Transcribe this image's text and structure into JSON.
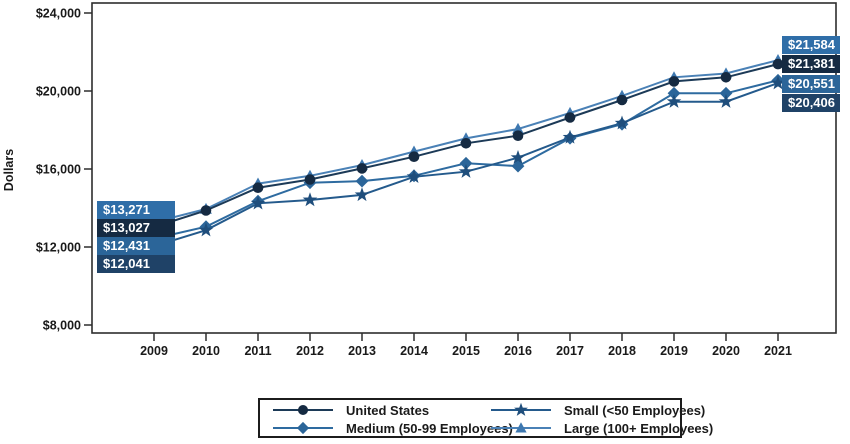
{
  "chart_data": {
    "type": "line",
    "title": "",
    "xlabel": "",
    "ylabel": "Dollars",
    "grid": false,
    "legend_position": "bottom",
    "x": [
      2009,
      2010,
      2011,
      2012,
      2013,
      2014,
      2015,
      2016,
      2017,
      2018,
      2019,
      2020,
      2021
    ],
    "ylim": [
      8000,
      24000
    ],
    "yticks": [
      8000,
      12000,
      16000,
      20000,
      24000
    ],
    "ytick_labels": [
      "$8,000",
      "$12,000",
      "$16,000",
      "$20,000",
      "$24,000"
    ],
    "series": [
      {
        "id": "united-states",
        "name": "United States",
        "marker": "circle",
        "color": "#152a42",
        "line_color": "#1c3a57",
        "label_bg": "#152a42",
        "values": [
          13027,
          13870,
          15040,
          15460,
          16030,
          16630,
          17320,
          17710,
          18640,
          19540,
          20490,
          20700,
          21381
        ],
        "start_label": "$13,027",
        "end_label": "$21,381"
      },
      {
        "id": "medium-50-99",
        "name": "Medium (50-99 Employees)",
        "marker": "diamond",
        "color": "#2b6599",
        "line_color": "#2e6ba0",
        "label_bg": "#2b6599",
        "values": [
          12431,
          13040,
          14350,
          15300,
          15380,
          15650,
          16290,
          16150,
          17580,
          18300,
          19880,
          19880,
          20551
        ],
        "start_label": "$12,431",
        "end_label": "$20,551"
      },
      {
        "id": "small-under-50",
        "name": "Small (<50 Employees)",
        "marker": "star",
        "color": "#1f4e7c",
        "line_color": "#245a8c",
        "label_bg": "#1f4267",
        "values": [
          12041,
          12860,
          14240,
          14410,
          14670,
          15600,
          15860,
          16580,
          17620,
          18350,
          19450,
          19450,
          20406
        ],
        "start_label": "$12,041",
        "end_label": "$20,406"
      },
      {
        "id": "large-100-plus",
        "name": "Large (100+ Employees)",
        "marker": "triangle",
        "color": "#3e78b0",
        "line_color": "#4a81b6",
        "label_bg": "#2f6ea8",
        "values": [
          13271,
          13950,
          15250,
          15650,
          16200,
          16890,
          17570,
          18050,
          18870,
          19750,
          20700,
          20900,
          21584
        ],
        "start_label": "$13,271",
        "end_label": "$21,584"
      }
    ]
  }
}
